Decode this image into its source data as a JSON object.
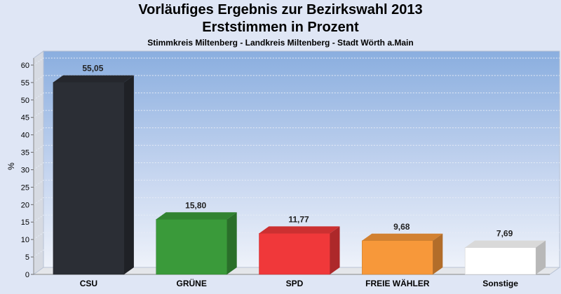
{
  "chart_data": {
    "type": "bar",
    "title": "Vorläufiges Ergebnis zur Bezirkswahl 2013",
    "subtitle": "Erststimmen in Prozent",
    "subtitle2": "Stimmkreis Miltenberg - Landkreis Miltenberg - Stadt Wörth a.Main",
    "xlabel": "",
    "ylabel": "%",
    "ylim": [
      0,
      62
    ],
    "yticks": [
      "0",
      "5",
      "10",
      "15",
      "20",
      "25",
      "30",
      "35",
      "40",
      "45",
      "50",
      "55",
      "60"
    ],
    "grid": true,
    "categories": [
      "CSU",
      "GRÜNE",
      "SPD",
      "FREIE WÄHLER",
      "Sonstige"
    ],
    "values": [
      55.05,
      15.8,
      11.77,
      9.68,
      7.69
    ],
    "value_labels": [
      "55,05",
      "15,80",
      "11,77",
      "9,68",
      "7,69"
    ],
    "colors": [
      "#2b2e35",
      "#3a9a3a",
      "#f0383a",
      "#f7983a",
      "#ffffff"
    ]
  }
}
